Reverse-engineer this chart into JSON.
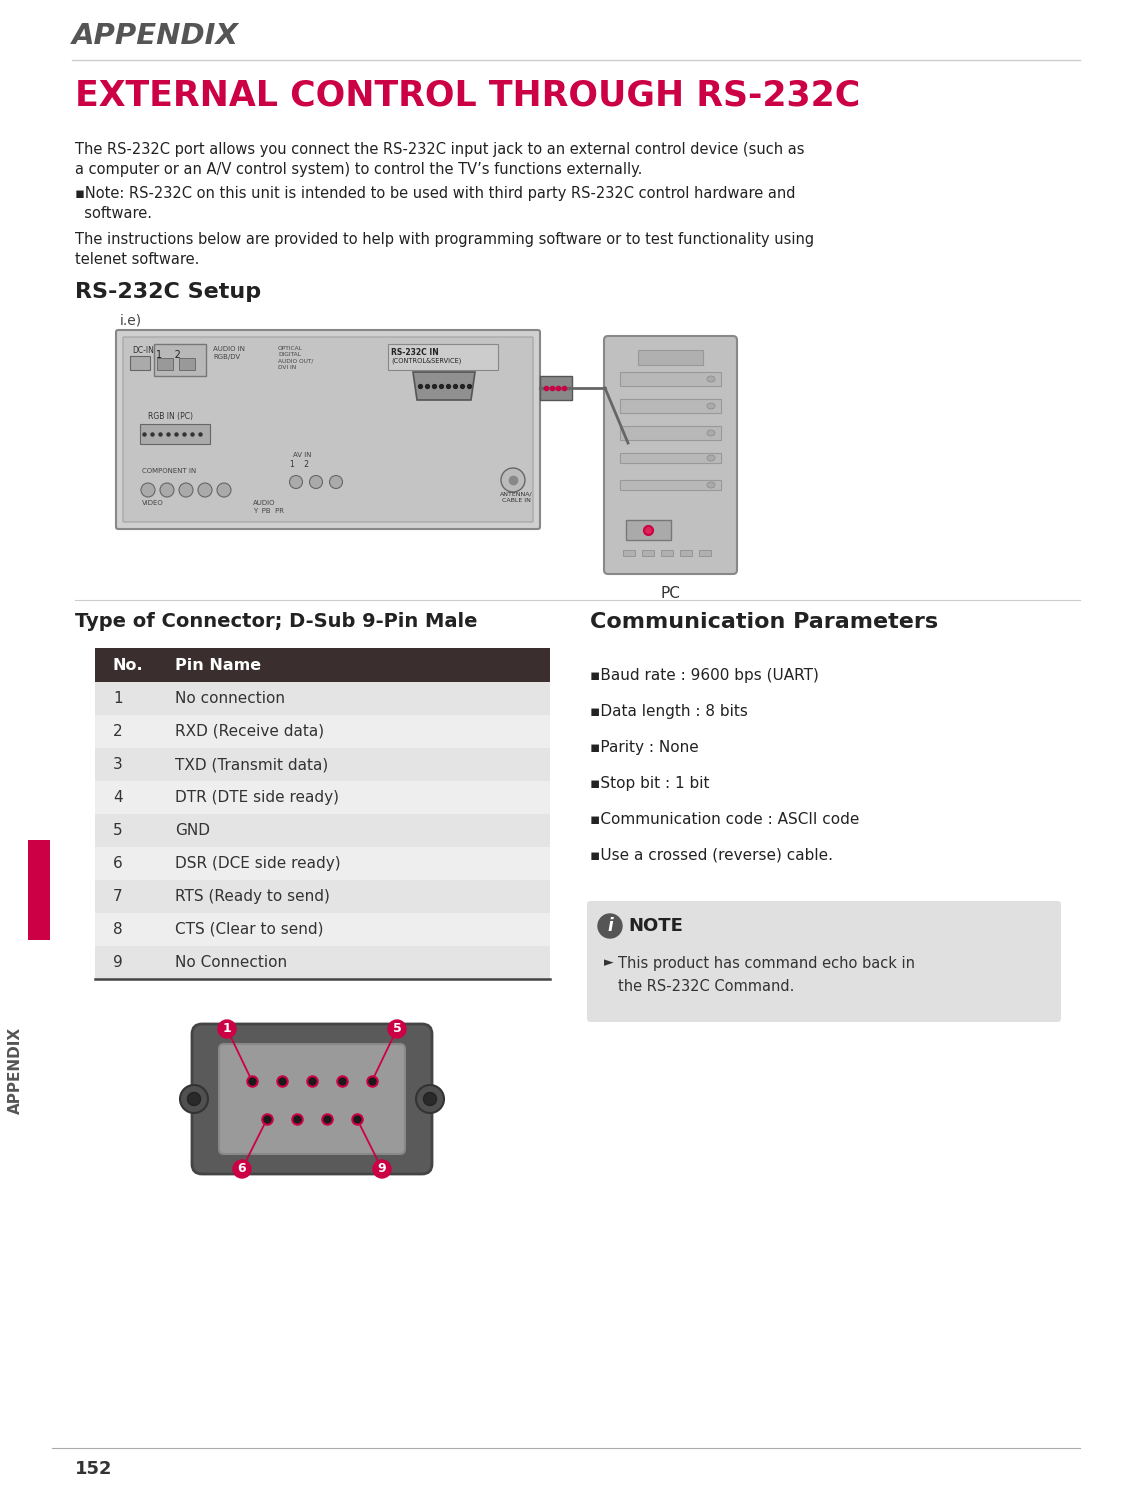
{
  "page_bg": "#ffffff",
  "appendix_label": "APPENDIX",
  "appendix_label_color": "#555555",
  "main_title": "EXTERNAL CONTROL THROUGH RS-232C",
  "main_title_color": "#cc0044",
  "body_text_1a": "The RS-232C port allows you connect the RS-232C input jack to an external control device (such as",
  "body_text_1b": "a computer or an A/V control system) to control the TV’s functions externally.",
  "note_bullet_sym": "▪",
  "note_text_1a": "Note: RS-232C on this unit is intended to be used with third party RS-232C control hardware and",
  "note_text_1b": "  software.",
  "body_text_2a": "The instructions below are provided to help with programming software or to test functionality using",
  "body_text_2b": "telenet software.",
  "setup_title": "RS-232C Setup",
  "ie_label": "i.e)",
  "pc_label": "PC",
  "connector_title": "Type of Connector; D-Sub 9-Pin Male",
  "comm_title": "Communication Parameters",
  "table_header_bg": "#3a2e2e",
  "table_header_fg": "#ffffff",
  "table_row_bg_even": "#e4e4e4",
  "table_row_bg_odd": "#eeeeee",
  "table_col1_header": "No.",
  "table_col2_header": "Pin Name",
  "pins": [
    [
      1,
      "No connection"
    ],
    [
      2,
      "RXD (Receive data)"
    ],
    [
      3,
      "TXD (Transmit data)"
    ],
    [
      4,
      "DTR (DTE side ready)"
    ],
    [
      5,
      "GND"
    ],
    [
      6,
      "DSR (DCE side ready)"
    ],
    [
      7,
      "RTS (Ready to send)"
    ],
    [
      8,
      "CTS (Clear to send)"
    ],
    [
      9,
      "No Connection"
    ]
  ],
  "comm_params": [
    "Baud rate : 9600 bps (UART)",
    "Data length : 8 bits",
    "Parity : None",
    "Stop bit : 1 bit",
    "Communication code : ASCII code",
    "Use a crossed (reverse) cable."
  ],
  "note_box_bg": "#e0e0e0",
  "note_text_line1": "This product has command echo back in",
  "note_text_line2": "the RS-232C Command.",
  "arrow_bullet": "►",
  "side_label": "APPENDIX",
  "side_bar_color": "#cc0044",
  "page_number": "152",
  "top_line_color": "#cccccc",
  "bottom_line_color": "#aaaaaa"
}
